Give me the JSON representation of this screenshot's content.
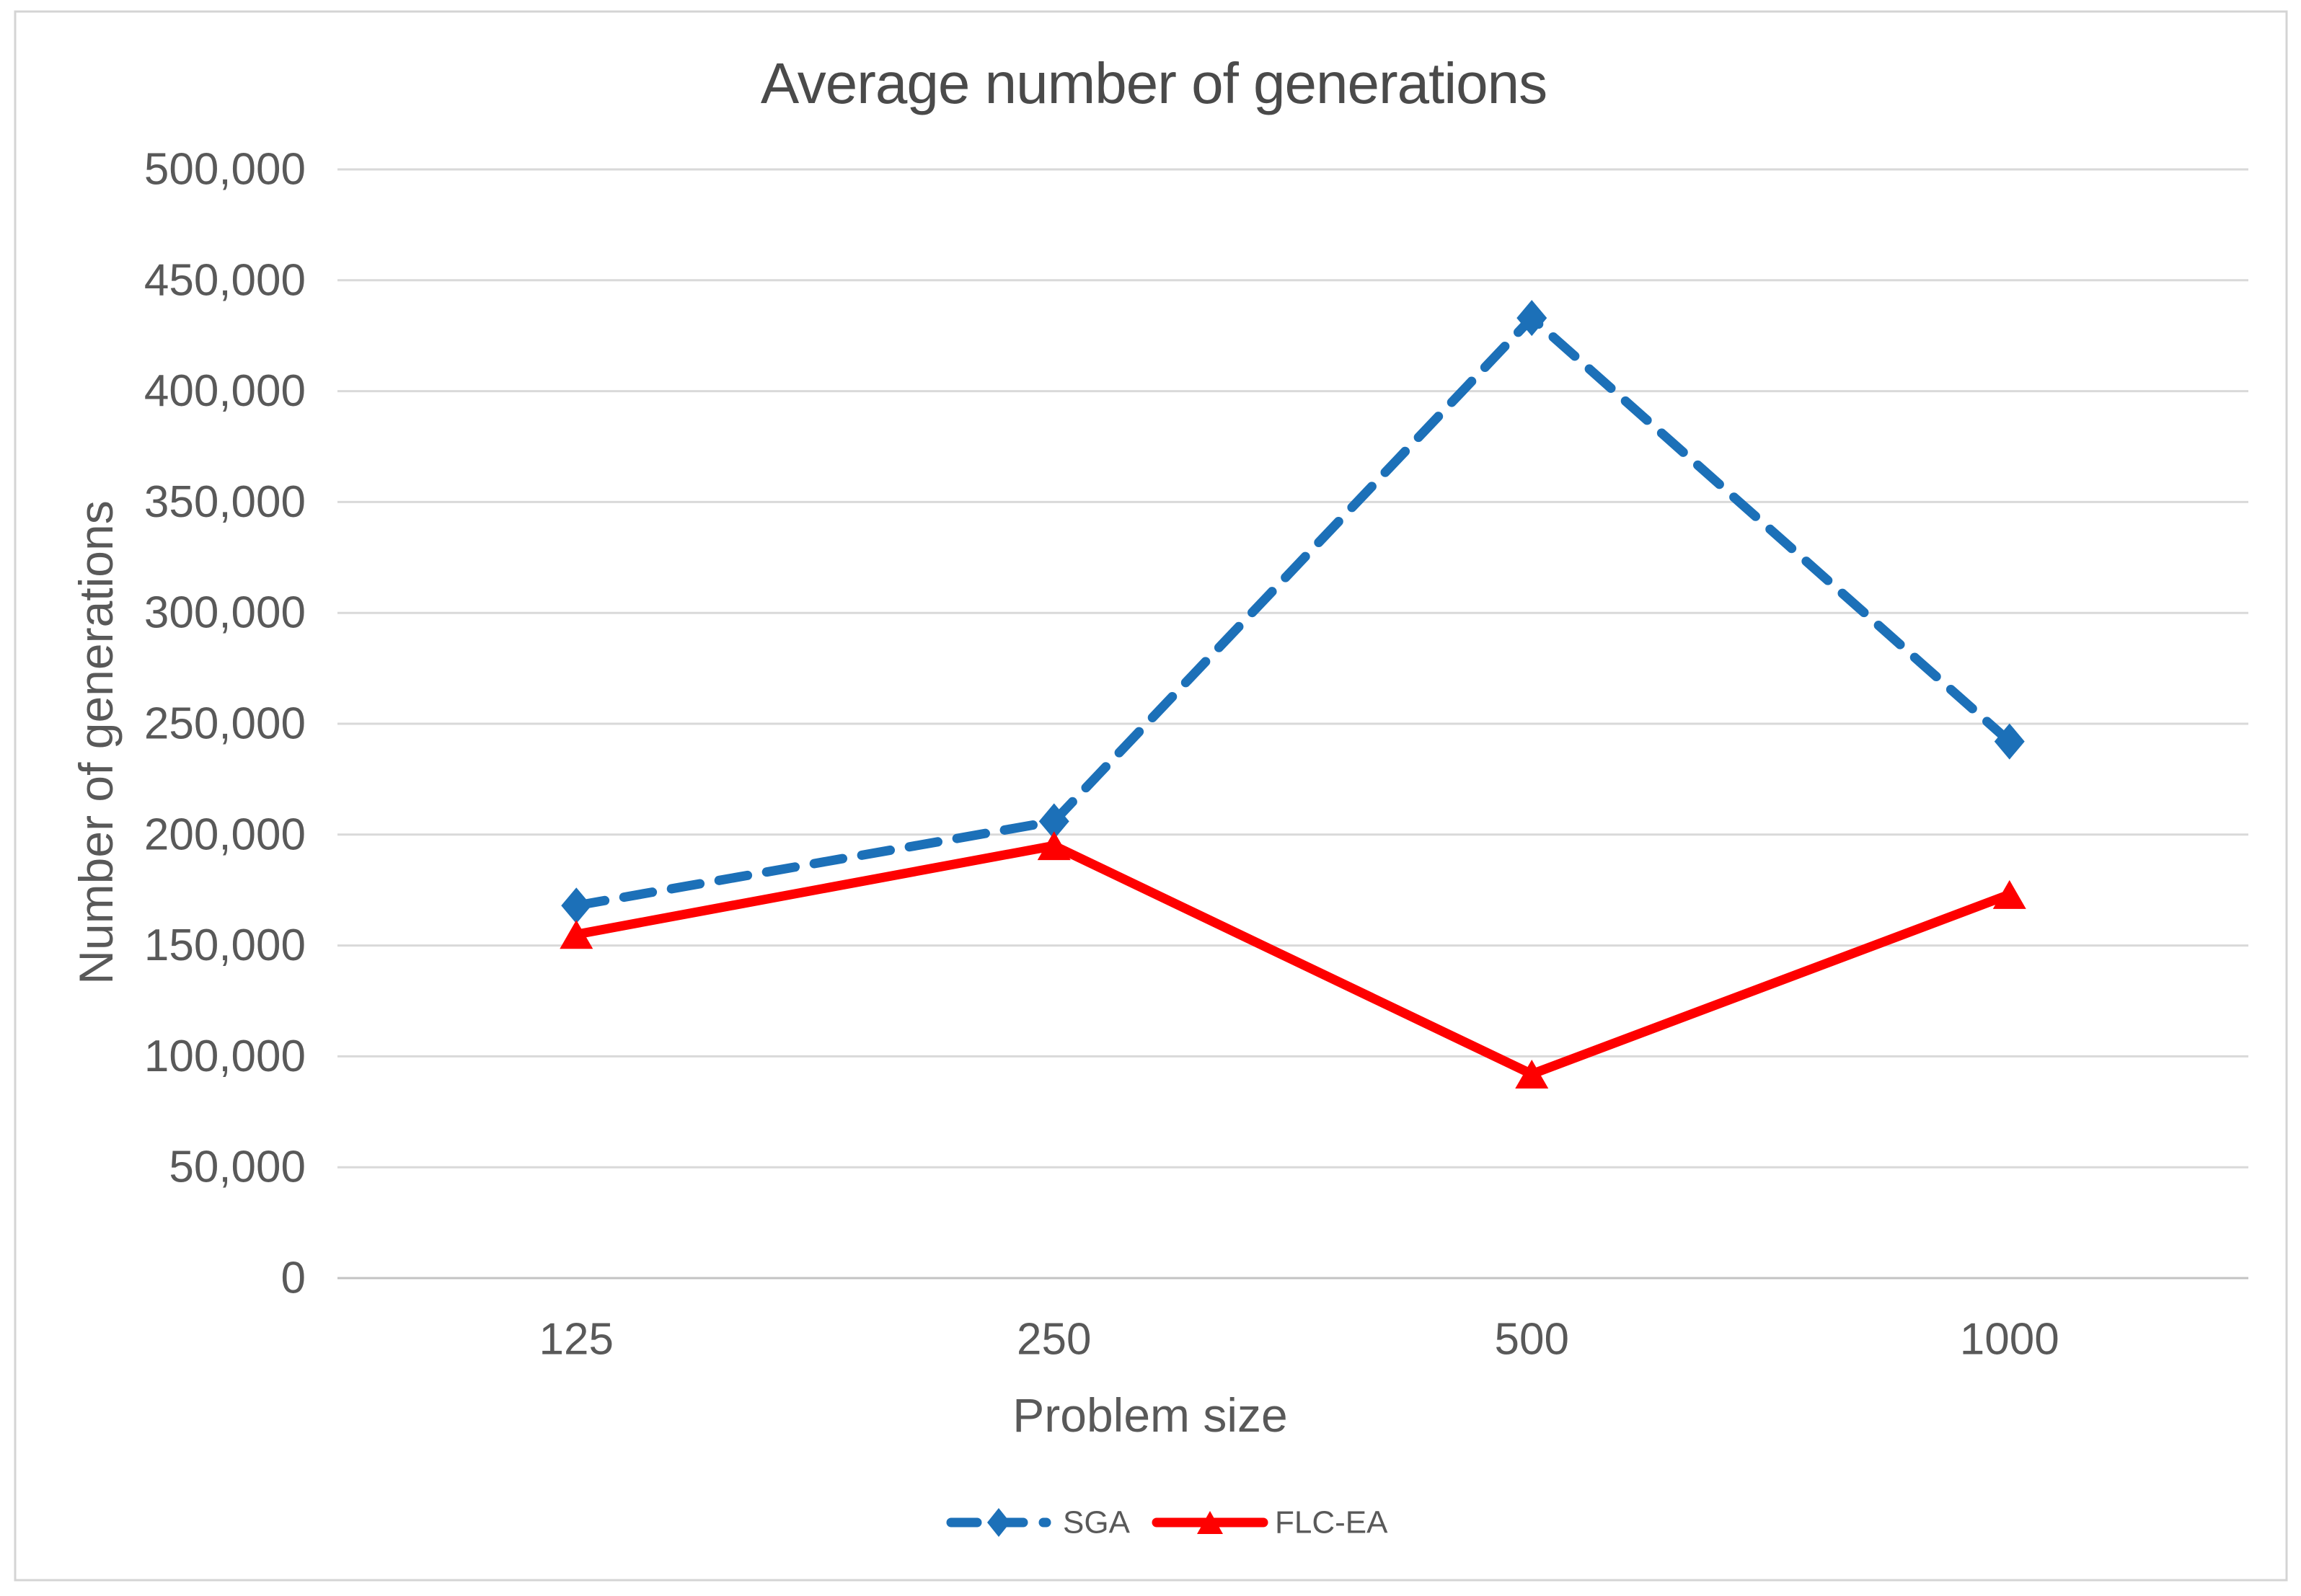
{
  "figure": {
    "background": "#ffffff",
    "border_color": "#d4d4d4"
  },
  "chart_data": {
    "type": "line",
    "title": "Average number of generations",
    "xlabel": "Problem size",
    "ylabel": "Number of generations",
    "categories": [
      "125",
      "250",
      "500",
      "1000"
    ],
    "series": [
      {
        "name": "SGA",
        "color": "#1c70b8",
        "line_style": "dashed",
        "marker": "diamond",
        "values": [
          168000,
          206000,
          433000,
          242000
        ]
      },
      {
        "name": "FLC-EA",
        "color": "#fe0000",
        "line_style": "solid",
        "marker": "triangle",
        "values": [
          155000,
          195000,
          92000,
          173000
        ]
      }
    ],
    "ylim": [
      0,
      500000
    ],
    "ytick_step": 50000,
    "ytick_labels": [
      "0",
      "50,000",
      "100,000",
      "150,000",
      "200,000",
      "250,000",
      "300,000",
      "350,000",
      "400,000",
      "450,000",
      "500,000"
    ],
    "grid": "horizontal",
    "gridline_color": "#d9d9d9",
    "axis_line_color": "#c3c3c3",
    "text_color": "#595959",
    "title_color": "#4a4a4a",
    "legend_position": "bottom-center"
  }
}
